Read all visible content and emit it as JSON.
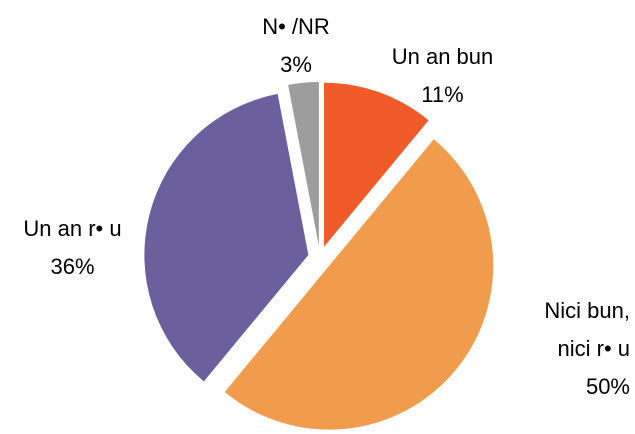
{
  "chart_data": {
    "type": "pie",
    "categories": [
      "Un an bun",
      "Nici bun, nici r• u",
      "Un an r• u",
      "N• /NR"
    ],
    "values": [
      11,
      50,
      36,
      3
    ],
    "value_labels": [
      "11%",
      "50%",
      "36%",
      "3%"
    ],
    "colors": [
      "#f15a29",
      "#f09c4c",
      "#6c5f9e",
      "#9d9d9d"
    ]
  }
}
